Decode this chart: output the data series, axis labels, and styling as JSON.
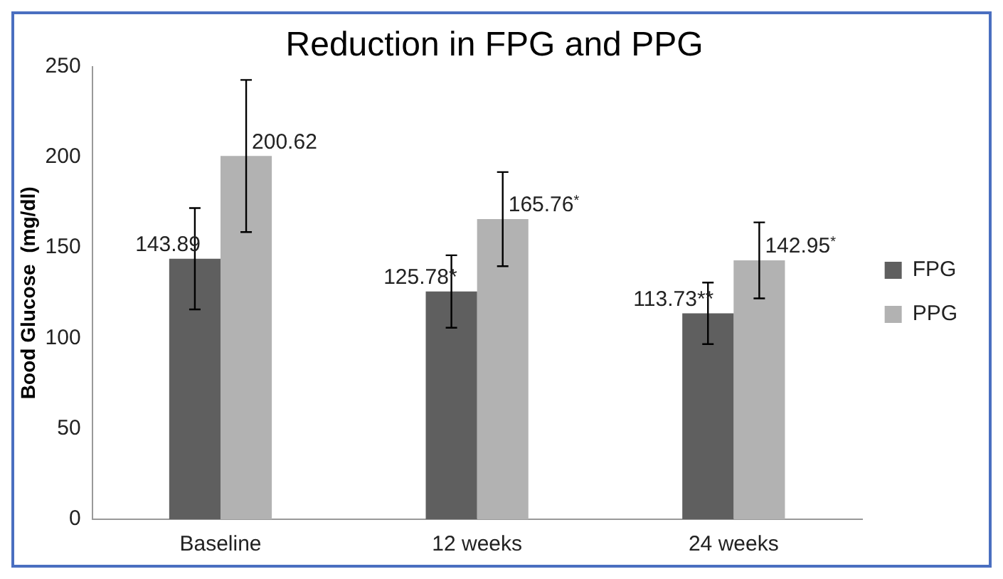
{
  "chart_data": {
    "type": "bar",
    "title": "Reduction in FPG and PPG",
    "ylabel": "Bood Glucose  (mg/dl)",
    "categories": [
      "Baseline",
      "12 weeks",
      "24 weeks"
    ],
    "series": [
      {
        "name": "FPG",
        "color": "#5f5f5f",
        "values": [
          143.89,
          125.78,
          113.73
        ],
        "errors": [
          28,
          20,
          17
        ],
        "value_labels": [
          "143.89",
          "125.78*",
          "113.73**"
        ]
      },
      {
        "name": "PPG",
        "color": "#b2b2b2",
        "values": [
          200.62,
          165.76,
          142.95
        ],
        "errors": [
          42,
          26,
          21
        ],
        "value_labels": [
          "200.62",
          "165.76$^{*}$",
          "142.95$^{*}$"
        ]
      }
    ],
    "ylim": [
      0,
      250
    ],
    "yticks": [
      0,
      50,
      100,
      150,
      200,
      250
    ],
    "grid": false,
    "legend": "right"
  }
}
